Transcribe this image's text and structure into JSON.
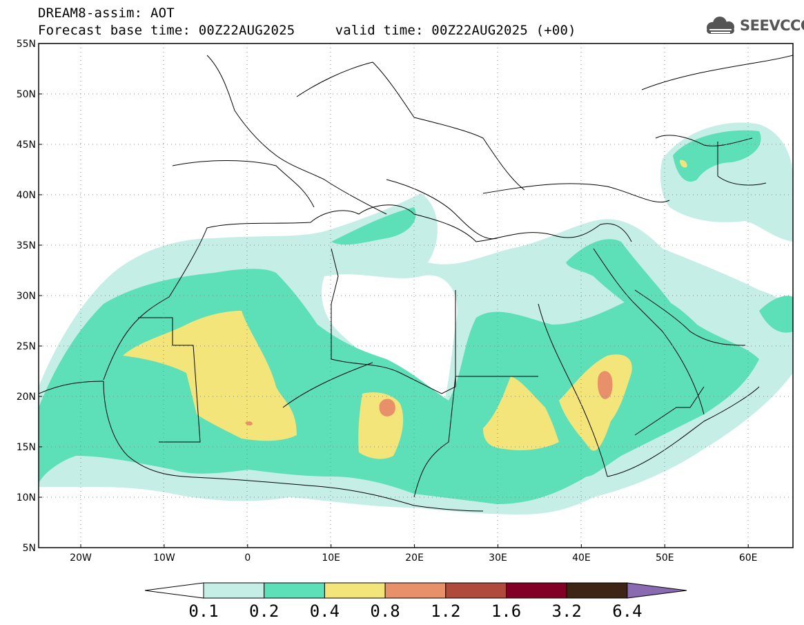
{
  "title": {
    "line1": "DREAM8-assim: AOT",
    "line2": "Forecast base time: 00Z22AUG2025     valid time: 00Z22AUG2025 (+00)"
  },
  "logo": {
    "text": "SEEVCCC",
    "icon": "cloud-icon"
  },
  "map": {
    "lon_range": [
      -25,
      65
    ],
    "lat_range": [
      5,
      55
    ],
    "grid": "dotted",
    "lat_ticks": [
      "55N",
      "50N",
      "45N",
      "40N",
      "35N",
      "30N",
      "25N",
      "20N",
      "15N",
      "10N",
      "5N"
    ],
    "lon_ticks": [
      "20W",
      "10W",
      "0",
      "10E",
      "20E",
      "30E",
      "40E",
      "50E",
      "60E"
    ]
  },
  "colorbar": {
    "levels": [
      "0.1",
      "0.2",
      "0.4",
      "0.8",
      "1.2",
      "1.6",
      "3.2",
      "6.4"
    ],
    "colors": [
      "#ffffff",
      "#c4eee6",
      "#5ddfb8",
      "#f4e57a",
      "#e8906a",
      "#b04a3c",
      "#820026",
      "#3d2414",
      "#8a6ab0"
    ]
  },
  "colors": {
    "c1": "#c4eee6",
    "c2": "#5ddfb8",
    "c3": "#f4e57a",
    "c4": "#e8906a"
  }
}
